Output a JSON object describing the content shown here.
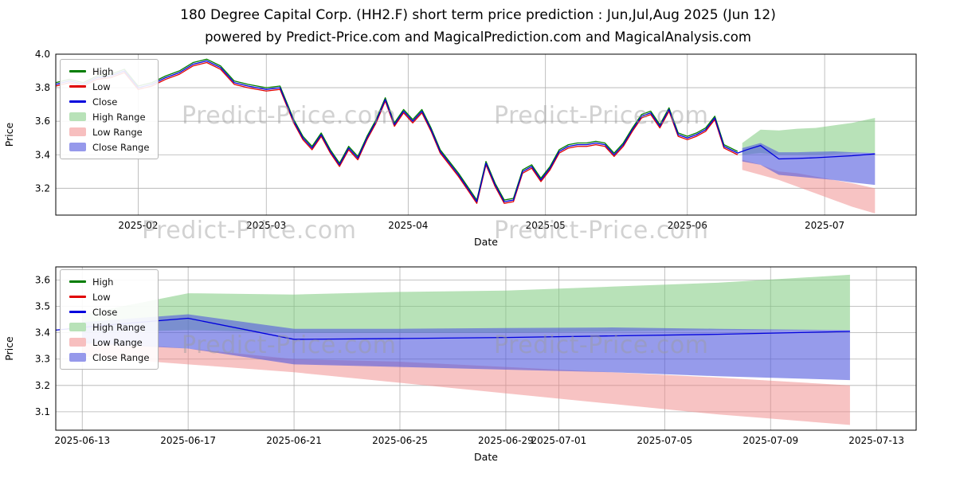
{
  "title": "180 Degree Capital Corp. (HH2.F) short term price prediction : Jun,Jul,Aug 2025 (Jun 12)",
  "subtitle": "powered by Predict-Price.com and MagicalPrediction.com and MagicalAnalysis.com",
  "watermark": "Predict-Price.com",
  "colors": {
    "high_line": "#007d00",
    "low_line": "#e00000",
    "close_line": "#0000dd",
    "high_band": "#7ecb7e",
    "low_band": "#f08888",
    "close_band": "#5058dd",
    "grid": "#b0b0b0",
    "axis": "#000000"
  },
  "legend": [
    {
      "label": "High",
      "type": "line",
      "color": "#007d00"
    },
    {
      "label": "Low",
      "type": "line",
      "color": "#e00000"
    },
    {
      "label": "Close",
      "type": "line",
      "color": "#0000dd"
    },
    {
      "label": "High Range",
      "type": "patch",
      "color": "#b8e2b8"
    },
    {
      "label": "Low Range",
      "type": "patch",
      "color": "#f7bfbf"
    },
    {
      "label": "Close Range",
      "type": "patch",
      "color": "#9699eb"
    }
  ],
  "chart_data": [
    {
      "type": "line",
      "title": "",
      "xlabel": "Date",
      "ylabel": "Price",
      "xlim": [
        "2025-01-14",
        "2025-07-21"
      ],
      "ylim": [
        3.04,
        4.0
      ],
      "grid": true,
      "legend_position": "upper left",
      "x_ticks": [
        {
          "v": "2025-02-01",
          "label": "2025-02"
        },
        {
          "v": "2025-03-01",
          "label": "2025-03"
        },
        {
          "v": "2025-04-01",
          "label": "2025-04"
        },
        {
          "v": "2025-05-01",
          "label": "2025-05"
        },
        {
          "v": "2025-06-01",
          "label": "2025-06"
        },
        {
          "v": "2025-07-01",
          "label": "2025-07"
        }
      ],
      "y_ticks": [
        {
          "v": 3.2,
          "label": "3.2"
        },
        {
          "v": 3.4,
          "label": "3.4"
        },
        {
          "v": 3.6,
          "label": "3.6"
        },
        {
          "v": 3.8,
          "label": "3.8"
        },
        {
          "v": 4.0,
          "label": "4.0"
        }
      ],
      "x_default": [
        "2025-01-14",
        "2025-01-17",
        "2025-01-20",
        "2025-01-23",
        "2025-01-26",
        "2025-01-29",
        "2025-02-01",
        "2025-02-04",
        "2025-02-07",
        "2025-02-10",
        "2025-02-13",
        "2025-02-16",
        "2025-02-19",
        "2025-02-22",
        "2025-02-25",
        "2025-03-01",
        "2025-03-04",
        "2025-03-07",
        "2025-03-09",
        "2025-03-11",
        "2025-03-13",
        "2025-03-15",
        "2025-03-17",
        "2025-03-19",
        "2025-03-21",
        "2025-03-23",
        "2025-03-25",
        "2025-03-27",
        "2025-03-29",
        "2025-03-31",
        "2025-04-02",
        "2025-04-04",
        "2025-04-06",
        "2025-04-08",
        "2025-04-10",
        "2025-04-12",
        "2025-04-14",
        "2025-04-16",
        "2025-04-18",
        "2025-04-20",
        "2025-04-22",
        "2025-04-24",
        "2025-04-26",
        "2025-04-28",
        "2025-04-30",
        "2025-05-02",
        "2025-05-04",
        "2025-05-06",
        "2025-05-08",
        "2025-05-10",
        "2025-05-12",
        "2025-05-14",
        "2025-05-16",
        "2025-05-18",
        "2025-05-20",
        "2025-05-22",
        "2025-05-24",
        "2025-05-26",
        "2025-05-28",
        "2025-05-30",
        "2025-06-01",
        "2025-06-03",
        "2025-06-05",
        "2025-06-07",
        "2025-06-09",
        "2025-06-12"
      ],
      "series": [
        {
          "name": "High",
          "color": "#007d00",
          "y": [
            3.83,
            3.85,
            3.83,
            3.87,
            3.88,
            3.91,
            3.81,
            3.83,
            3.87,
            3.9,
            3.95,
            3.97,
            3.93,
            3.84,
            3.82,
            3.8,
            3.81,
            3.61,
            3.51,
            3.45,
            3.53,
            3.43,
            3.35,
            3.45,
            3.39,
            3.51,
            3.61,
            3.74,
            3.59,
            3.67,
            3.61,
            3.67,
            3.56,
            3.43,
            3.36,
            3.29,
            3.21,
            3.13,
            3.36,
            3.23,
            3.13,
            3.14,
            3.31,
            3.34,
            3.26,
            3.33,
            3.43,
            3.46,
            3.47,
            3.47,
            3.48,
            3.47,
            3.41,
            3.47,
            3.56,
            3.64,
            3.66,
            3.58,
            3.68,
            3.53,
            3.51,
            3.53,
            3.56,
            3.63,
            3.46,
            3.42
          ]
        },
        {
          "name": "Low",
          "color": "#e00000",
          "y": [
            3.81,
            3.83,
            3.81,
            3.85,
            3.86,
            3.89,
            3.79,
            3.81,
            3.85,
            3.88,
            3.93,
            3.95,
            3.91,
            3.82,
            3.8,
            3.78,
            3.79,
            3.59,
            3.49,
            3.43,
            3.51,
            3.41,
            3.33,
            3.43,
            3.37,
            3.49,
            3.59,
            3.72,
            3.57,
            3.65,
            3.59,
            3.65,
            3.54,
            3.41,
            3.34,
            3.27,
            3.19,
            3.11,
            3.34,
            3.21,
            3.11,
            3.12,
            3.29,
            3.32,
            3.24,
            3.31,
            3.41,
            3.44,
            3.45,
            3.45,
            3.46,
            3.45,
            3.39,
            3.45,
            3.54,
            3.62,
            3.64,
            3.56,
            3.66,
            3.51,
            3.49,
            3.51,
            3.54,
            3.61,
            3.44,
            3.4
          ]
        },
        {
          "name": "Close",
          "color": "#0000dd",
          "x": [
            "2025-01-14",
            "2025-01-17",
            "2025-01-20",
            "2025-01-23",
            "2025-01-26",
            "2025-01-29",
            "2025-02-01",
            "2025-02-04",
            "2025-02-07",
            "2025-02-10",
            "2025-02-13",
            "2025-02-16",
            "2025-02-19",
            "2025-02-22",
            "2025-02-25",
            "2025-03-01",
            "2025-03-04",
            "2025-03-07",
            "2025-03-09",
            "2025-03-11",
            "2025-03-13",
            "2025-03-15",
            "2025-03-17",
            "2025-03-19",
            "2025-03-21",
            "2025-03-23",
            "2025-03-25",
            "2025-03-27",
            "2025-03-29",
            "2025-03-31",
            "2025-04-02",
            "2025-04-04",
            "2025-04-06",
            "2025-04-08",
            "2025-04-10",
            "2025-04-12",
            "2025-04-14",
            "2025-04-16",
            "2025-04-18",
            "2025-04-20",
            "2025-04-22",
            "2025-04-24",
            "2025-04-26",
            "2025-04-28",
            "2025-04-30",
            "2025-05-02",
            "2025-05-04",
            "2025-05-06",
            "2025-05-08",
            "2025-05-10",
            "2025-05-12",
            "2025-05-14",
            "2025-05-16",
            "2025-05-18",
            "2025-05-20",
            "2025-05-22",
            "2025-05-24",
            "2025-05-26",
            "2025-05-28",
            "2025-05-30",
            "2025-06-01",
            "2025-06-03",
            "2025-06-05",
            "2025-06-07",
            "2025-06-09",
            "2025-06-12",
            "2025-06-14",
            "2025-06-17",
            "2025-06-21",
            "2025-06-25",
            "2025-06-29",
            "2025-07-03",
            "2025-07-07",
            "2025-07-12"
          ],
          "y": [
            3.82,
            3.84,
            3.82,
            3.86,
            3.87,
            3.9,
            3.8,
            3.82,
            3.86,
            3.89,
            3.94,
            3.96,
            3.92,
            3.83,
            3.81,
            3.79,
            3.8,
            3.6,
            3.5,
            3.44,
            3.52,
            3.42,
            3.34,
            3.44,
            3.38,
            3.5,
            3.6,
            3.73,
            3.58,
            3.66,
            3.6,
            3.66,
            3.55,
            3.42,
            3.35,
            3.28,
            3.2,
            3.12,
            3.35,
            3.22,
            3.12,
            3.13,
            3.3,
            3.33,
            3.25,
            3.32,
            3.42,
            3.45,
            3.46,
            3.46,
            3.47,
            3.46,
            3.4,
            3.46,
            3.55,
            3.63,
            3.65,
            3.57,
            3.67,
            3.52,
            3.5,
            3.52,
            3.55,
            3.62,
            3.45,
            3.41,
            3.43,
            3.455,
            3.375,
            3.378,
            3.382,
            3.388,
            3.394,
            3.405
          ]
        }
      ],
      "bands": [
        {
          "name": "High Range",
          "color": "#7ecb7e",
          "opacity": 0.55,
          "x": [
            "2025-06-13",
            "2025-06-17",
            "2025-06-21",
            "2025-06-25",
            "2025-06-29",
            "2025-07-03",
            "2025-07-07",
            "2025-07-12"
          ],
          "upper": [
            3.47,
            3.55,
            3.545,
            3.555,
            3.56,
            3.575,
            3.59,
            3.62
          ],
          "lower": [
            3.4,
            3.41,
            3.4,
            3.4,
            3.4,
            3.405,
            3.41,
            3.41
          ]
        },
        {
          "name": "Low Range",
          "color": "#f08888",
          "opacity": 0.5,
          "x": [
            "2025-06-13",
            "2025-06-17",
            "2025-06-21",
            "2025-06-25",
            "2025-06-29",
            "2025-07-03",
            "2025-07-07",
            "2025-07-12"
          ],
          "upper": [
            3.37,
            3.34,
            3.3,
            3.29,
            3.27,
            3.25,
            3.23,
            3.2
          ],
          "lower": [
            3.31,
            3.28,
            3.25,
            3.21,
            3.17,
            3.13,
            3.09,
            3.05
          ]
        },
        {
          "name": "Close Range",
          "color": "#5058dd",
          "opacity": 0.6,
          "x": [
            "2025-06-13",
            "2025-06-17",
            "2025-06-21",
            "2025-06-25",
            "2025-06-29",
            "2025-07-03",
            "2025-07-07",
            "2025-07-12"
          ],
          "upper": [
            3.44,
            3.47,
            3.415,
            3.415,
            3.418,
            3.42,
            3.415,
            3.41
          ],
          "lower": [
            3.36,
            3.34,
            3.28,
            3.27,
            3.26,
            3.25,
            3.235,
            3.22
          ]
        }
      ]
    },
    {
      "type": "line",
      "title": "",
      "xlabel": "Date",
      "ylabel": "Price",
      "xlim": [
        "2025-06-12",
        "2025-07-14T12:00:00Z"
      ],
      "ylim": [
        3.03,
        3.65
      ],
      "grid": true,
      "legend_position": "upper left",
      "x_ticks": [
        {
          "v": "2025-06-13",
          "label": "2025-06-13"
        },
        {
          "v": "2025-06-17",
          "label": "2025-06-17"
        },
        {
          "v": "2025-06-21",
          "label": "2025-06-21"
        },
        {
          "v": "2025-06-25",
          "label": "2025-06-25"
        },
        {
          "v": "2025-06-29",
          "label": "2025-06-29"
        },
        {
          "v": "2025-07-01",
          "label": "2025-07-01"
        },
        {
          "v": "2025-07-05",
          "label": "2025-07-05"
        },
        {
          "v": "2025-07-09",
          "label": "2025-07-09"
        },
        {
          "v": "2025-07-13",
          "label": "2025-07-13"
        }
      ],
      "y_ticks": [
        {
          "v": 3.1,
          "label": "3.1"
        },
        {
          "v": 3.2,
          "label": "3.2"
        },
        {
          "v": 3.3,
          "label": "3.3"
        },
        {
          "v": 3.4,
          "label": "3.4"
        },
        {
          "v": 3.5,
          "label": "3.5"
        },
        {
          "v": 3.6,
          "label": "3.6"
        }
      ],
      "series": [
        {
          "name": "Close",
          "color": "#0000dd",
          "x": [
            "2025-06-12",
            "2025-06-14",
            "2025-06-17",
            "2025-06-21",
            "2025-06-25",
            "2025-06-29",
            "2025-07-03",
            "2025-07-07",
            "2025-07-12"
          ],
          "y": [
            3.41,
            3.43,
            3.455,
            3.375,
            3.378,
            3.382,
            3.388,
            3.394,
            3.405
          ]
        }
      ],
      "bands": [
        {
          "name": "High Range",
          "color": "#7ecb7e",
          "opacity": 0.55,
          "x": [
            "2025-06-13",
            "2025-06-17",
            "2025-06-21",
            "2025-06-25",
            "2025-06-29",
            "2025-07-03",
            "2025-07-07",
            "2025-07-12"
          ],
          "upper": [
            3.47,
            3.55,
            3.545,
            3.555,
            3.56,
            3.575,
            3.59,
            3.62
          ],
          "lower": [
            3.4,
            3.41,
            3.4,
            3.4,
            3.4,
            3.405,
            3.41,
            3.41
          ]
        },
        {
          "name": "Low Range",
          "color": "#f08888",
          "opacity": 0.5,
          "x": [
            "2025-06-13",
            "2025-06-17",
            "2025-06-21",
            "2025-06-25",
            "2025-06-29",
            "2025-07-03",
            "2025-07-07",
            "2025-07-12"
          ],
          "upper": [
            3.37,
            3.34,
            3.3,
            3.29,
            3.27,
            3.25,
            3.23,
            3.2
          ],
          "lower": [
            3.31,
            3.28,
            3.25,
            3.21,
            3.17,
            3.13,
            3.09,
            3.05
          ]
        },
        {
          "name": "Close Range",
          "color": "#5058dd",
          "opacity": 0.6,
          "x": [
            "2025-06-13",
            "2025-06-17",
            "2025-06-21",
            "2025-06-25",
            "2025-06-29",
            "2025-07-03",
            "2025-07-07",
            "2025-07-12"
          ],
          "upper": [
            3.44,
            3.47,
            3.415,
            3.415,
            3.418,
            3.42,
            3.415,
            3.41
          ],
          "lower": [
            3.36,
            3.34,
            3.28,
            3.27,
            3.26,
            3.25,
            3.235,
            3.22
          ]
        }
      ]
    }
  ]
}
